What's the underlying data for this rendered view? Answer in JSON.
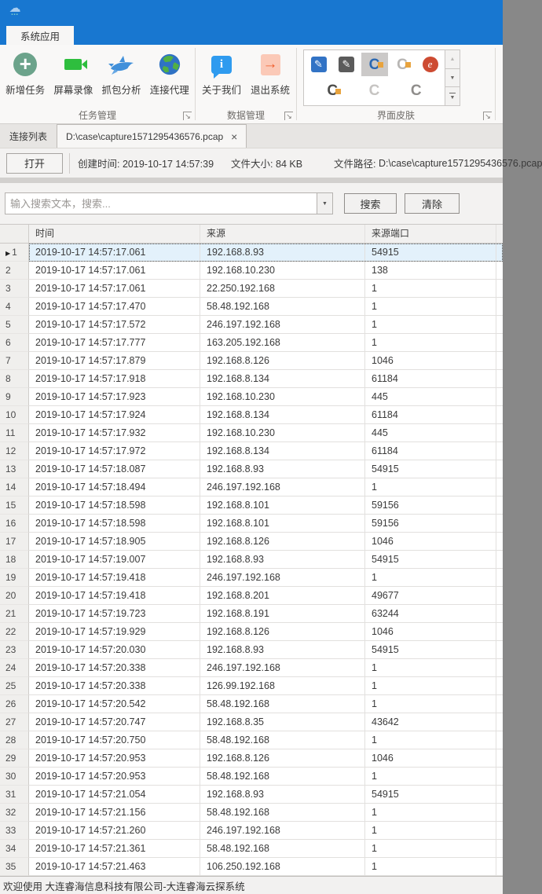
{
  "ribbon": {
    "tab_label": "系统应用",
    "groups": [
      {
        "caption": "任务管理",
        "buttons": [
          {
            "label": "新增任务"
          },
          {
            "label": "屏幕录像"
          },
          {
            "label": "抓包分析"
          },
          {
            "label": "连接代理"
          }
        ]
      },
      {
        "caption": "数据管理",
        "buttons": [
          {
            "label": "关于我们"
          },
          {
            "label": "退出系统"
          }
        ]
      },
      {
        "caption": "界面皮肤"
      }
    ],
    "skin_gallery": {
      "items": [
        {
          "name": "skin-word-blue",
          "shape": "square",
          "bg": "#3273c5",
          "fg": "#ffffff",
          "glyph": "✎",
          "selected": false,
          "accent": false
        },
        {
          "name": "skin-word-dark",
          "shape": "square",
          "bg": "#5b5b5b",
          "fg": "#ffffff",
          "glyph": "✎",
          "selected": false,
          "accent": false
        },
        {
          "name": "skin-office-colorful",
          "shape": "letter",
          "bg": "",
          "fg": "#2a67b1",
          "glyph": "C",
          "selected": true,
          "accent": true
        },
        {
          "name": "skin-office-light",
          "shape": "letter",
          "bg": "",
          "fg": "#b8b6b4",
          "glyph": "C",
          "selected": false,
          "accent": true
        },
        {
          "name": "skin-access-red",
          "shape": "circle",
          "bg": "#cd4b32",
          "fg": "#ffffff",
          "glyph": "e",
          "selected": false,
          "accent": false
        },
        {
          "name": "skin-office-dark",
          "shape": "letter",
          "bg": "",
          "fg": "#4c4c4a",
          "glyph": "C",
          "selected": false,
          "accent": true
        },
        {
          "name": "skin-office-outline-light",
          "shape": "letter",
          "bg": "",
          "fg": "#c6c4c2",
          "glyph": "C",
          "selected": false,
          "accent": false
        },
        {
          "name": "skin-office-outline-gray",
          "shape": "letter",
          "bg": "",
          "fg": "#8f8d8b",
          "glyph": "C",
          "selected": false,
          "accent": false
        }
      ]
    }
  },
  "doc_tabs": {
    "plain_tab": "连接列表",
    "active_tab": "D:\\case\\capture1571295436576.pcap"
  },
  "file_info": {
    "open_button": "打开",
    "created_label": "创建时间:",
    "created_value": "2019-10-17 14:57:39",
    "size_label": "文件大小:",
    "size_value": "84 KB",
    "path_label": "文件路径:",
    "path_value": "D:\\case\\capture1571295436576.pcap"
  },
  "search": {
    "placeholder": "输入搜索文本，搜索...",
    "search_button": "搜索",
    "clear_button": "清除"
  },
  "table": {
    "columns": [
      "时间",
      "来源",
      "来源端口"
    ],
    "selected_row_index": 0,
    "rows": [
      [
        "2019-10-17 14:57:17.061",
        "192.168.8.93",
        "54915"
      ],
      [
        "2019-10-17 14:57:17.061",
        "192.168.10.230",
        "138"
      ],
      [
        "2019-10-17 14:57:17.061",
        "22.250.192.168",
        "1"
      ],
      [
        "2019-10-17 14:57:17.470",
        "58.48.192.168",
        "1"
      ],
      [
        "2019-10-17 14:57:17.572",
        "246.197.192.168",
        "1"
      ],
      [
        "2019-10-17 14:57:17.777",
        "163.205.192.168",
        "1"
      ],
      [
        "2019-10-17 14:57:17.879",
        "192.168.8.126",
        "1046"
      ],
      [
        "2019-10-17 14:57:17.918",
        "192.168.8.134",
        "61184"
      ],
      [
        "2019-10-17 14:57:17.923",
        "192.168.10.230",
        "445"
      ],
      [
        "2019-10-17 14:57:17.924",
        "192.168.8.134",
        "61184"
      ],
      [
        "2019-10-17 14:57:17.932",
        "192.168.10.230",
        "445"
      ],
      [
        "2019-10-17 14:57:17.972",
        "192.168.8.134",
        "61184"
      ],
      [
        "2019-10-17 14:57:18.087",
        "192.168.8.93",
        "54915"
      ],
      [
        "2019-10-17 14:57:18.494",
        "246.197.192.168",
        "1"
      ],
      [
        "2019-10-17 14:57:18.598",
        "192.168.8.101",
        "59156"
      ],
      [
        "2019-10-17 14:57:18.598",
        "192.168.8.101",
        "59156"
      ],
      [
        "2019-10-17 14:57:18.905",
        "192.168.8.126",
        "1046"
      ],
      [
        "2019-10-17 14:57:19.007",
        "192.168.8.93",
        "54915"
      ],
      [
        "2019-10-17 14:57:19.418",
        "246.197.192.168",
        "1"
      ],
      [
        "2019-10-17 14:57:19.418",
        "192.168.8.201",
        "49677"
      ],
      [
        "2019-10-17 14:57:19.723",
        "192.168.8.191",
        "63244"
      ],
      [
        "2019-10-17 14:57:19.929",
        "192.168.8.126",
        "1046"
      ],
      [
        "2019-10-17 14:57:20.030",
        "192.168.8.93",
        "54915"
      ],
      [
        "2019-10-17 14:57:20.338",
        "246.197.192.168",
        "1"
      ],
      [
        "2019-10-17 14:57:20.338",
        "126.99.192.168",
        "1"
      ],
      [
        "2019-10-17 14:57:20.542",
        "58.48.192.168",
        "1"
      ],
      [
        "2019-10-17 14:57:20.747",
        "192.168.8.35",
        "43642"
      ],
      [
        "2019-10-17 14:57:20.750",
        "58.48.192.168",
        "1"
      ],
      [
        "2019-10-17 14:57:20.953",
        "192.168.8.126",
        "1046"
      ],
      [
        "2019-10-17 14:57:20.953",
        "58.48.192.168",
        "1"
      ],
      [
        "2019-10-17 14:57:21.054",
        "192.168.8.93",
        "54915"
      ],
      [
        "2019-10-17 14:57:21.156",
        "58.48.192.168",
        "1"
      ],
      [
        "2019-10-17 14:57:21.260",
        "246.197.192.168",
        "1"
      ],
      [
        "2019-10-17 14:57:21.361",
        "58.48.192.168",
        "1"
      ],
      [
        "2019-10-17 14:57:21.463",
        "106.250.192.168",
        "1"
      ]
    ]
  },
  "status_bar": {
    "text": "欢迎使用 大连睿海信息科技有限公司-大连睿海云探系统"
  },
  "icons": {
    "close_tab": "×",
    "combo_dropdown": "▼",
    "gallery_up": "▲",
    "gallery_down": "▼",
    "gallery_more": "▼",
    "row_marker": "▶",
    "launcher": "↘"
  }
}
